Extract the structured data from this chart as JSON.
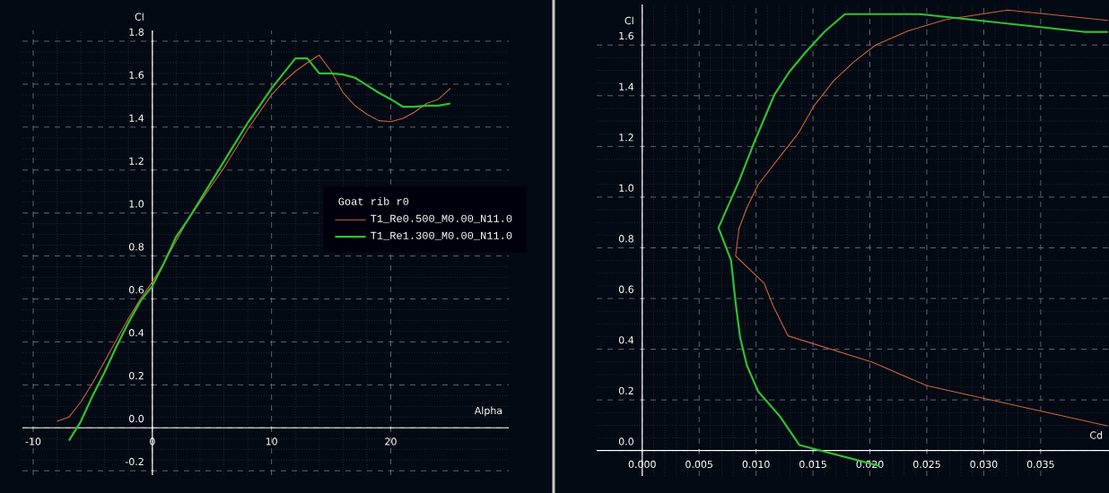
{
  "chart_data": [
    {
      "type": "line",
      "xlabel": "Alpha",
      "ylabel": "Cl",
      "legend_title": "Goat rib r0",
      "legend": "right",
      "grid": true,
      "line_style": "solid",
      "xlim": [
        -10.9,
        29.9
      ],
      "ylim": [
        -0.22,
        1.85
      ],
      "xticks": [
        -10,
        0,
        10,
        20
      ],
      "yticks": [
        {
          "value": -0.2,
          "label": "-0.2"
        },
        {
          "value": 0,
          "label": "0.0"
        },
        0.2,
        0.4,
        0.6,
        0.8,
        {
          "value": 1,
          "label": "1.0"
        },
        1.2,
        1.4,
        1.6,
        1.8
      ],
      "series": [
        {
          "name": "T1_Re0.500_M0.00_N11.0",
          "color": "#c8643c",
          "x": [
            -8,
            -7,
            -6,
            -5,
            -4,
            -3,
            -2,
            -1,
            0,
            1,
            2,
            3,
            4,
            5,
            6,
            7,
            8,
            9,
            10,
            11,
            12,
            13,
            14,
            15,
            16,
            17,
            18,
            19,
            20,
            21,
            22,
            23,
            24,
            25
          ],
          "values": [
            0.03,
            0.05,
            0.12,
            0.21,
            0.31,
            0.41,
            0.51,
            0.6,
            0.68,
            0.77,
            0.87,
            0.97,
            1.05,
            1.13,
            1.21,
            1.3,
            1.39,
            1.47,
            1.55,
            1.61,
            1.66,
            1.7,
            1.735,
            1.66,
            1.56,
            1.5,
            1.46,
            1.43,
            1.425,
            1.44,
            1.47,
            1.51,
            1.53,
            1.58
          ]
        },
        {
          "name": "T1_Re1.300_M0.00_N11.0",
          "color": "#30c030",
          "x": [
            -7,
            -6,
            -5,
            -4,
            -3,
            -2,
            -1,
            0,
            1,
            2,
            3,
            4,
            5,
            6,
            7,
            8,
            9,
            10,
            11,
            12,
            13,
            14,
            15,
            16,
            17,
            18,
            19,
            20,
            21,
            22,
            23,
            24,
            25
          ],
          "values": [
            -0.06,
            0.03,
            0.15,
            0.26,
            0.38,
            0.49,
            0.59,
            0.66,
            0.77,
            0.89,
            0.97,
            1.06,
            1.15,
            1.24,
            1.33,
            1.42,
            1.5,
            1.58,
            1.65,
            1.72,
            1.72,
            1.65,
            1.65,
            1.645,
            1.63,
            1.595,
            1.56,
            1.53,
            1.495,
            1.495,
            1.5,
            1.5,
            1.51
          ]
        }
      ]
    },
    {
      "type": "line",
      "xlabel": "Cd",
      "ylabel": "Cl",
      "grid": true,
      "line_style": "solid",
      "xlim": [
        -0.004,
        0.041
      ],
      "ylim": [
        -0.1,
        1.76
      ],
      "xticks": [
        {
          "value": 0,
          "label": "0.000"
        },
        0.005,
        {
          "value": 0.01,
          "label": "0.010"
        },
        0.015,
        {
          "value": 0.02,
          "label": "0.020"
        },
        0.025,
        {
          "value": 0.03,
          "label": "0.030"
        },
        0.035
      ],
      "yticks": [
        {
          "value": 0,
          "label": "0.0"
        },
        0.2,
        0.4,
        0.6,
        0.8,
        {
          "value": 1,
          "label": "1.0"
        },
        1.2,
        1.4,
        1.6
      ],
      "series": [
        {
          "color": "#c8643c",
          "x": [
            0.0409,
            0.025,
            0.0202,
            0.0128,
            0.0115,
            0.0107,
            0.0082,
            0.0085,
            0.0092,
            0.0102,
            0.0121,
            0.0137,
            0.0151,
            0.0168,
            0.0186,
            0.0205,
            0.0233,
            0.0267,
            0.0321,
            0.0409
          ],
          "values": [
            0.097,
            0.256,
            0.349,
            0.453,
            0.571,
            0.661,
            0.768,
            0.876,
            0.959,
            1.05,
            1.16,
            1.251,
            1.361,
            1.458,
            1.534,
            1.6,
            1.655,
            1.701,
            1.738,
            1.697
          ]
        },
        {
          "color": "#30c030",
          "x": [
            0.0208,
            0.0138,
            0.0121,
            0.0102,
            0.0092,
            0.0086,
            0.0082,
            0.0078,
            0.0067,
            0.0085,
            0.0099,
            0.0116,
            0.0129,
            0.0143,
            0.016,
            0.0178,
            0.0244,
            0.0388,
            0.0409
          ],
          "values": [
            -0.06,
            0.022,
            0.135,
            0.232,
            0.335,
            0.446,
            0.585,
            0.751,
            0.879,
            1.063,
            1.223,
            1.403,
            1.493,
            1.569,
            1.652,
            1.722,
            1.722,
            1.652,
            1.652
          ]
        }
      ]
    }
  ]
}
